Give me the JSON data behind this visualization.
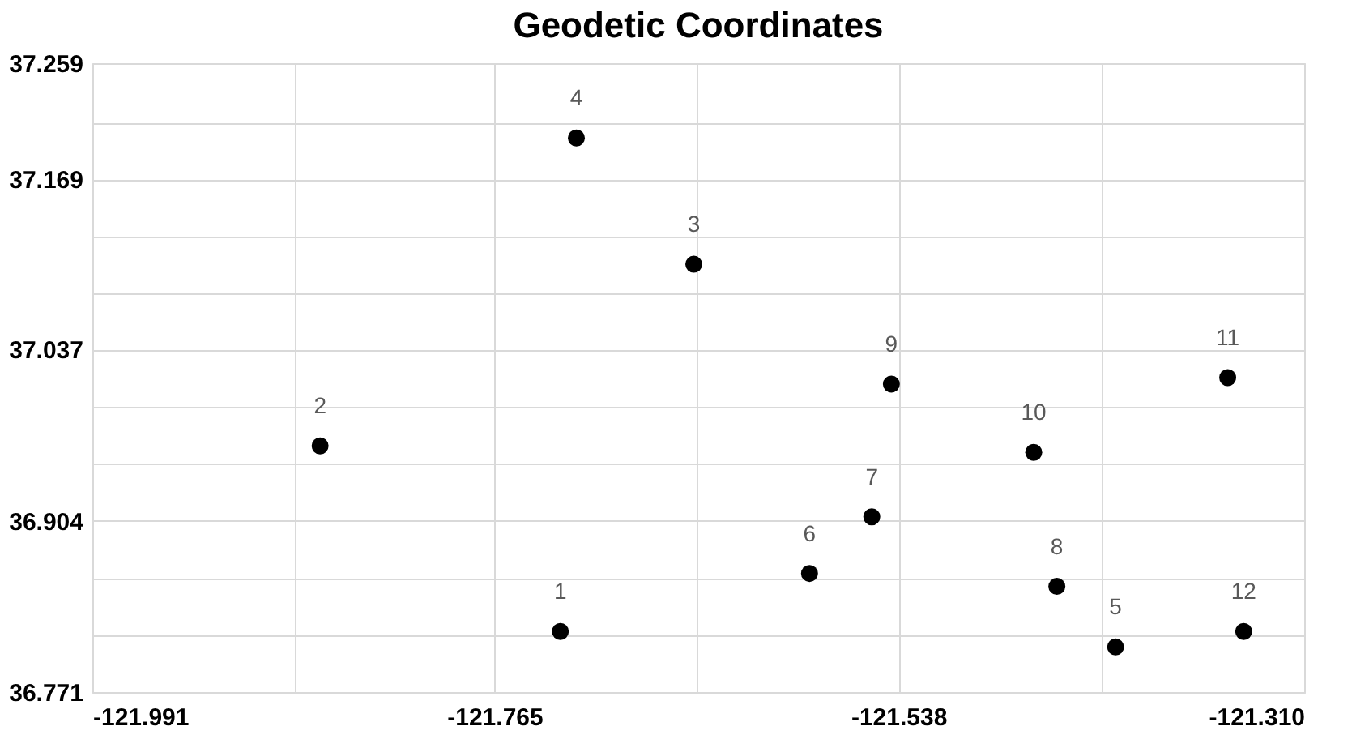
{
  "chart_data": {
    "type": "scatter",
    "title": "Geodetic Coordinates",
    "x": [
      -121.728,
      -121.863,
      -121.653,
      -121.719,
      -121.416,
      -121.588,
      -121.553,
      -121.449,
      -121.542,
      -121.462,
      -121.353,
      -121.344
    ],
    "series": [
      {
        "color": "#000000",
        "values": [
          36.818,
          36.962,
          37.103,
          37.201,
          36.806,
          36.863,
          36.907,
          36.853,
          37.01,
          36.957,
          37.015,
          36.818
        ]
      }
    ],
    "xlim": [
      -121.991,
      -121.31
    ],
    "xticks": [
      -121.991,
      {
        "value": -121.8775,
        "label": null
      },
      -121.765,
      {
        "value": -121.651,
        "label": null
      },
      -121.538,
      {
        "value": -121.424,
        "label": null
      },
      {
        "value": -121.31,
        "label": "-121.310"
      }
    ],
    "ylim": [
      36.771,
      37.259
    ],
    "yticks": [
      36.771,
      {
        "value": 36.815,
        "label": null
      },
      {
        "value": 36.859,
        "label": null
      },
      36.904,
      {
        "value": 36.948,
        "label": null
      },
      {
        "value": 36.992,
        "label": null
      },
      37.037,
      {
        "value": 37.081,
        "label": null
      },
      {
        "value": 37.125,
        "label": null
      },
      37.169,
      {
        "value": 37.213,
        "label": null
      },
      37.259
    ],
    "annotations": [
      {
        "text": "1",
        "x": -121.728,
        "y": 36.818
      },
      {
        "text": "2",
        "x": -121.863,
        "y": 36.962
      },
      {
        "text": "3",
        "x": -121.653,
        "y": 37.103
      },
      {
        "text": "4",
        "x": -121.719,
        "y": 37.201
      },
      {
        "text": "5",
        "x": -121.416,
        "y": 36.806
      },
      {
        "text": "6",
        "x": -121.588,
        "y": 36.863
      },
      {
        "text": "7",
        "x": -121.553,
        "y": 36.907
      },
      {
        "text": "8",
        "x": -121.449,
        "y": 36.853
      },
      {
        "text": "9",
        "x": -121.542,
        "y": 37.01
      },
      {
        "text": "10",
        "x": -121.462,
        "y": 36.957
      },
      {
        "text": "11",
        "x": -121.353,
        "y": 37.015
      },
      {
        "text": "12",
        "x": -121.344,
        "y": 36.818
      }
    ],
    "grid": true,
    "marker": "circle"
  }
}
